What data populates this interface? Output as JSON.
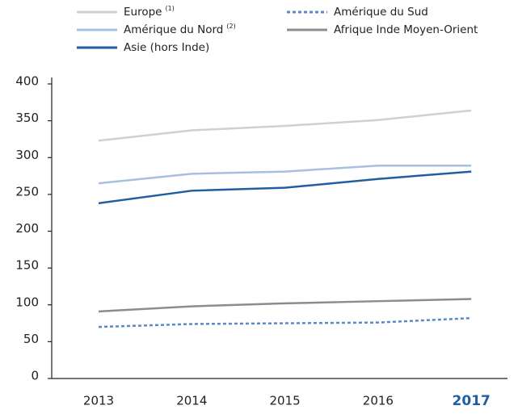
{
  "chart_data": {
    "type": "line",
    "x": [
      "2013",
      "2014",
      "2015",
      "2016",
      "2017"
    ],
    "series": [
      {
        "name": "Europe",
        "note": "(1)",
        "color": "#d0d0d0",
        "values": [
          323,
          337,
          343,
          351,
          364
        ]
      },
      {
        "name": "Amérique du Sud",
        "color": "#5a88c8",
        "dashed": true,
        "values": [
          70,
          74,
          75,
          76,
          82
        ]
      },
      {
        "name": "Amérique du Nord",
        "note": "(2)",
        "color": "#a9bfe0",
        "values": [
          265,
          278,
          281,
          289,
          289
        ]
      },
      {
        "name": "Afrique Inde Moyen-Orient",
        "color": "#8c8c8c",
        "values": [
          91,
          98,
          102,
          105,
          108
        ]
      },
      {
        "name": "Asie (hors Inde)",
        "color": "#1f5fa0",
        "values": [
          238,
          255,
          259,
          271,
          281
        ]
      }
    ],
    "ylim": [
      0,
      400
    ],
    "yticks": [
      0,
      50,
      100,
      150,
      200,
      250,
      300,
      350,
      400
    ],
    "grid": false
  }
}
